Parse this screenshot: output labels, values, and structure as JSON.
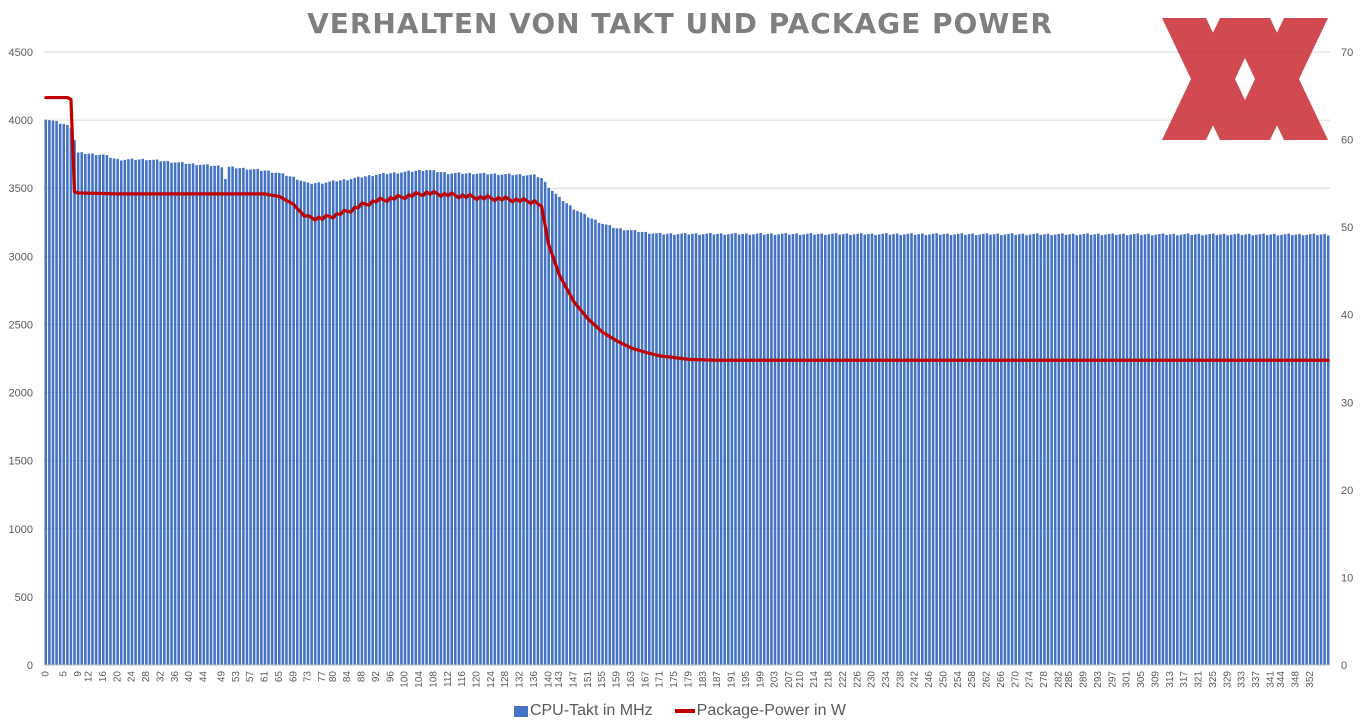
{
  "chart_data": {
    "type": "bar",
    "title": "VERHALTEN VON TAKT UND PACKAGE POWER",
    "x_start": 0,
    "x_end": 357,
    "x_tick_labels": [
      "0",
      "5",
      "9",
      "12",
      "16",
      "20",
      "24",
      "28",
      "32",
      "36",
      "40",
      "44",
      "49",
      "53",
      "57",
      "61",
      "65",
      "69",
      "73",
      "77",
      "80",
      "84",
      "88",
      "92",
      "96",
      "100",
      "104",
      "108",
      "112",
      "116",
      "120",
      "124",
      "128",
      "132",
      "136",
      "140",
      "143",
      "147",
      "151",
      "155",
      "159",
      "163",
      "167",
      "171",
      "175",
      "179",
      "183",
      "187",
      "191",
      "195",
      "199",
      "203",
      "207",
      "210",
      "214",
      "218",
      "222",
      "226",
      "230",
      "234",
      "238",
      "242",
      "246",
      "250",
      "254",
      "258",
      "262",
      "266",
      "270",
      "274",
      "278",
      "282",
      "285",
      "289",
      "293",
      "297",
      "301",
      "305",
      "309",
      "313",
      "317",
      "321",
      "325",
      "329",
      "333",
      "337",
      "341",
      "344",
      "348",
      "352"
    ],
    "y_left": {
      "min": 0,
      "max": 4500,
      "ticks": [
        0,
        500,
        1000,
        1500,
        2000,
        2500,
        3000,
        3500,
        4000,
        4500
      ]
    },
    "y_right": {
      "min": 0,
      "max": 70,
      "ticks": [
        0,
        10,
        20,
        30,
        40,
        50,
        60,
        70
      ]
    },
    "grid": true,
    "legend_position": "bottom",
    "series": [
      {
        "name": "CPU-Takt in MHz",
        "kind": "bar",
        "axis": "left",
        "color": "#4472c4",
        "keypoints": [
          [
            0,
            4010
          ],
          [
            5,
            3970
          ],
          [
            7,
            3950
          ],
          [
            9,
            3760
          ],
          [
            16,
            3745
          ],
          [
            20,
            3710
          ],
          [
            28,
            3712
          ],
          [
            40,
            3680
          ],
          [
            49,
            3660
          ],
          [
            61,
            3630
          ],
          [
            65,
            3610
          ],
          [
            69,
            3580
          ],
          [
            73,
            3535
          ],
          [
            77,
            3540
          ],
          [
            84,
            3565
          ],
          [
            92,
            3600
          ],
          [
            100,
            3620
          ],
          [
            106,
            3635
          ],
          [
            112,
            3610
          ],
          [
            120,
            3608
          ],
          [
            130,
            3600
          ],
          [
            136,
            3595
          ],
          [
            138,
            3575
          ],
          [
            140,
            3510
          ],
          [
            143,
            3430
          ],
          [
            147,
            3350
          ],
          [
            151,
            3290
          ],
          [
            155,
            3240
          ],
          [
            159,
            3205
          ],
          [
            163,
            3190
          ],
          [
            167,
            3175
          ],
          [
            171,
            3165
          ],
          [
            357,
            3160
          ]
        ],
        "outliers": [
          [
            50,
            3570
          ]
        ]
      },
      {
        "name": "Package-Power in W",
        "kind": "line",
        "axis": "right",
        "color": "#c00000",
        "keypoints": [
          [
            0,
            64.8
          ],
          [
            6,
            64.8
          ],
          [
            7,
            64.6
          ],
          [
            8,
            54.0
          ],
          [
            9,
            53.9
          ],
          [
            20,
            53.8
          ],
          [
            40,
            53.8
          ],
          [
            61,
            53.8
          ],
          [
            65,
            53.5
          ],
          [
            69,
            52.6
          ],
          [
            71,
            51.6
          ],
          [
            73,
            51.1
          ],
          [
            77,
            51.0
          ],
          [
            80,
            51.3
          ],
          [
            84,
            51.8
          ],
          [
            88,
            52.5
          ],
          [
            92,
            53.0
          ],
          [
            100,
            53.5
          ],
          [
            106,
            53.9
          ],
          [
            112,
            53.7
          ],
          [
            120,
            53.4
          ],
          [
            128,
            53.2
          ],
          [
            136,
            52.9
          ],
          [
            138,
            52.4
          ],
          [
            140,
            48.0
          ],
          [
            143,
            44.5
          ],
          [
            147,
            41.5
          ],
          [
            151,
            39.5
          ],
          [
            155,
            38.0
          ],
          [
            159,
            37.0
          ],
          [
            163,
            36.2
          ],
          [
            167,
            35.7
          ],
          [
            171,
            35.3
          ],
          [
            175,
            35.1
          ],
          [
            179,
            34.9
          ],
          [
            187,
            34.8
          ],
          [
            357,
            34.8
          ]
        ]
      }
    ]
  },
  "watermark": {
    "brand": "XX",
    "color": "#c61e28"
  }
}
